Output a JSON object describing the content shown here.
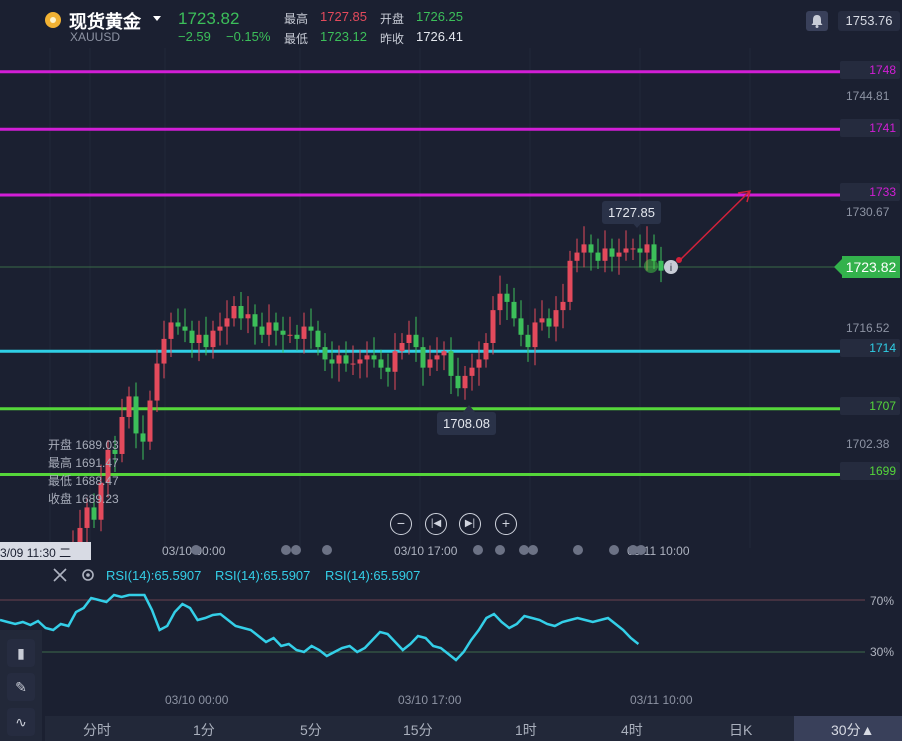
{
  "header": {
    "title": "现货黄金",
    "symbol": "XAUUSD",
    "price": "1723.82",
    "change": "−2.59",
    "change_pct": "−0.15%",
    "high_label": "最高",
    "high": "1727.85",
    "open_label": "开盘",
    "open": "1726.25",
    "low_label": "最低",
    "low": "1723.12",
    "prev_close_label": "昨收",
    "prev_close": "1726.41",
    "last_price": "1753.76"
  },
  "price_axis": {
    "ticks": [
      "1744.81",
      "1730.67",
      "1716.52",
      "1702.38"
    ],
    "current": "1723.82"
  },
  "hlines": [
    {
      "label": "1748",
      "color": "#d21ed6"
    },
    {
      "label": "1741",
      "color": "#d21ed6"
    },
    {
      "label": "1733",
      "color": "#d21ed6"
    },
    {
      "label": "1714",
      "color": "#2fcfe6"
    },
    {
      "label": "1707",
      "color": "#55d63a"
    },
    {
      "label": "1699",
      "color": "#55d63a"
    }
  ],
  "annotations": {
    "high_bubble": "1727.85",
    "low_bubble": "1708.08"
  },
  "ohlc_tooltip": {
    "open": "开盘 1689.03",
    "high": "最高 1691.47",
    "low": "最低 1688.47",
    "close": "收盘 1689.23",
    "crosshair_time": "3/09 11:30 二"
  },
  "time_axis": [
    "03/10 00:00",
    "03/10 17:00",
    "03/11 10:00"
  ],
  "rsi": {
    "labels": [
      "RSI(14):65.5907",
      "RSI(14):65.5907",
      "RSI(14):65.5907"
    ],
    "upper": "70%",
    "lower": "30%",
    "color": "#34cfe8"
  },
  "tabs": [
    "分时",
    "1分",
    "5分",
    "15分",
    "1时",
    "4时",
    "日K",
    "30分▲"
  ],
  "colors": {
    "up": "#e34a5c",
    "down": "#3cbf5a",
    "bg": "#1b2031"
  },
  "chart_data": {
    "type": "candlestick",
    "series": [
      {
        "values_close": [
          1689.2,
          1690.5,
          1692.5,
          1695,
          1693.5,
          1698,
          1702,
          1701.5,
          1706,
          1708.5,
          1704,
          1703,
          1708,
          1712.5,
          1715.5,
          1717.5,
          1717,
          1716.5,
          1715,
          1716,
          1714.5,
          1716.5,
          1717,
          1718,
          1719.5,
          1718,
          1718.5,
          1717,
          1716,
          1717.5,
          1716.5,
          1716,
          1716,
          1715.5,
          1717,
          1716.5,
          1714.5,
          1713,
          1712.5,
          1713.5,
          1712.5,
          1712.5,
          1713,
          1713.5,
          1713,
          1712,
          1711.5,
          1714,
          1715,
          1716,
          1714.5,
          1712,
          1713,
          1713.5,
          1714,
          1711,
          1709.5,
          1711,
          1712,
          1713,
          1715,
          1719,
          1721,
          1720,
          1718,
          1716,
          1714.5,
          1717.5,
          1718,
          1717,
          1719,
          1720,
          1725,
          1726,
          1727,
          1726,
          1725,
          1726.5,
          1725.5,
          1726,
          1726.5,
          1726.5,
          1726,
          1727,
          1725,
          1723.8
        ]
      }
    ]
  }
}
